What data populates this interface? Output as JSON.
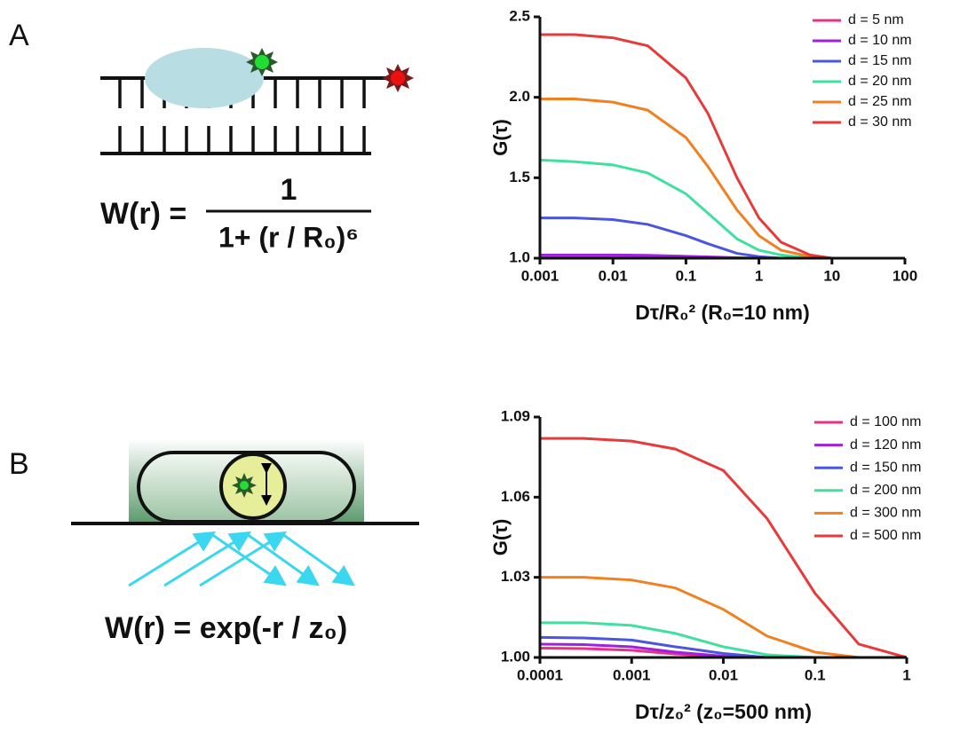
{
  "panels": {
    "a": {
      "label": "A",
      "lhs": "W(r) =",
      "numerator": "1",
      "denominator": "1+ (r / R₀)⁶"
    },
    "b": {
      "label": "B",
      "formula": "W(r) = exp(-r / z₀)"
    }
  },
  "chart_data": [
    {
      "type": "line",
      "x_scale": "log",
      "x_label": "Dτ/R₀²  (R₀=10 nm)",
      "y_label": "G(τ)",
      "x": [
        0.001,
        0.003,
        0.01,
        0.03,
        0.1,
        0.2,
        0.5,
        1,
        2,
        5,
        10,
        100
      ],
      "xlim": [
        0.001,
        100
      ],
      "xticks": [
        0.001,
        0.01,
        0.1,
        1,
        10,
        100
      ],
      "ylim": [
        1,
        2.5
      ],
      "yticks": [
        {
          "value": 1,
          "label": "1.0"
        },
        1.5,
        {
          "value": 2,
          "label": "2.0"
        },
        2.5
      ],
      "legend": "top-right",
      "series": [
        {
          "name": "d = 5 nm",
          "color": "#e8308a",
          "values": [
            1.004,
            1.004,
            1.004,
            1.003,
            1.002,
            1.001,
            1.0,
            1.0,
            1.0,
            1.0,
            1.0,
            1.0
          ]
        },
        {
          "name": "d = 10 nm",
          "color": "#a020e0",
          "values": [
            1.02,
            1.02,
            1.02,
            1.018,
            1.012,
            1.008,
            1.003,
            1.001,
            1.0,
            1.0,
            1.0,
            1.0
          ]
        },
        {
          "name": "d = 15 nm",
          "color": "#4a55e0",
          "values": [
            1.25,
            1.25,
            1.24,
            1.21,
            1.14,
            1.09,
            1.03,
            1.01,
            1.0,
            1.0,
            1.0,
            1.0
          ]
        },
        {
          "name": "d = 20 nm",
          "color": "#40e0a0",
          "values": [
            1.61,
            1.6,
            1.58,
            1.53,
            1.4,
            1.28,
            1.12,
            1.05,
            1.02,
            1.0,
            1.0,
            1.0
          ]
        },
        {
          "name": "d = 25 nm",
          "color": "#f08020",
          "values": [
            1.99,
            1.99,
            1.97,
            1.92,
            1.75,
            1.57,
            1.3,
            1.14,
            1.05,
            1.01,
            1.0,
            1.0
          ]
        },
        {
          "name": "d = 30 nm",
          "color": "#e83a3a",
          "values": [
            2.39,
            2.39,
            2.37,
            2.32,
            2.12,
            1.9,
            1.5,
            1.25,
            1.1,
            1.02,
            1.0,
            1.0
          ]
        }
      ]
    },
    {
      "type": "line",
      "x_scale": "log",
      "x_label": "Dτ/z₀²  (z₀=500 nm)",
      "y_label": "G(τ)",
      "x": [
        0.0001,
        0.0003,
        0.001,
        0.003,
        0.01,
        0.03,
        0.1,
        0.3,
        1
      ],
      "xlim": [
        0.0001,
        1
      ],
      "xticks": [
        0.0001,
        0.001,
        0.01,
        0.1,
        1
      ],
      "ylim": [
        1,
        1.09
      ],
      "yticks": [
        {
          "value": 1,
          "label": "1.00"
        },
        1.03,
        1.06,
        1.09
      ],
      "legend": "top-right",
      "series": [
        {
          "name": "d = 100 nm",
          "color": "#e8308a",
          "values": [
            1.0035,
            1.0033,
            1.0027,
            1.0013,
            1.0003,
            1.0,
            1.0,
            1.0,
            1.0
          ]
        },
        {
          "name": "d = 120 nm",
          "color": "#a020e0",
          "values": [
            1.005,
            1.0048,
            1.004,
            1.002,
            1.0005,
            1.0,
            1.0,
            1.0,
            1.0
          ]
        },
        {
          "name": "d = 150 nm",
          "color": "#4a55e0",
          "values": [
            1.0075,
            1.0073,
            1.0065,
            1.004,
            1.0015,
            1.0,
            1.0,
            1.0,
            1.0
          ]
        },
        {
          "name": "d = 200 nm",
          "color": "#40e0a0",
          "values": [
            1.013,
            1.013,
            1.012,
            1.009,
            1.004,
            1.001,
            1.0,
            1.0,
            1.0
          ]
        },
        {
          "name": "d = 300 nm",
          "color": "#f08020",
          "values": [
            1.03,
            1.03,
            1.029,
            1.026,
            1.018,
            1.008,
            1.002,
            1.0,
            1.0
          ]
        },
        {
          "name": "d = 500 nm",
          "color": "#e83a3a",
          "values": [
            1.082,
            1.082,
            1.081,
            1.078,
            1.07,
            1.052,
            1.024,
            1.005,
            1.0
          ]
        }
      ]
    }
  ]
}
